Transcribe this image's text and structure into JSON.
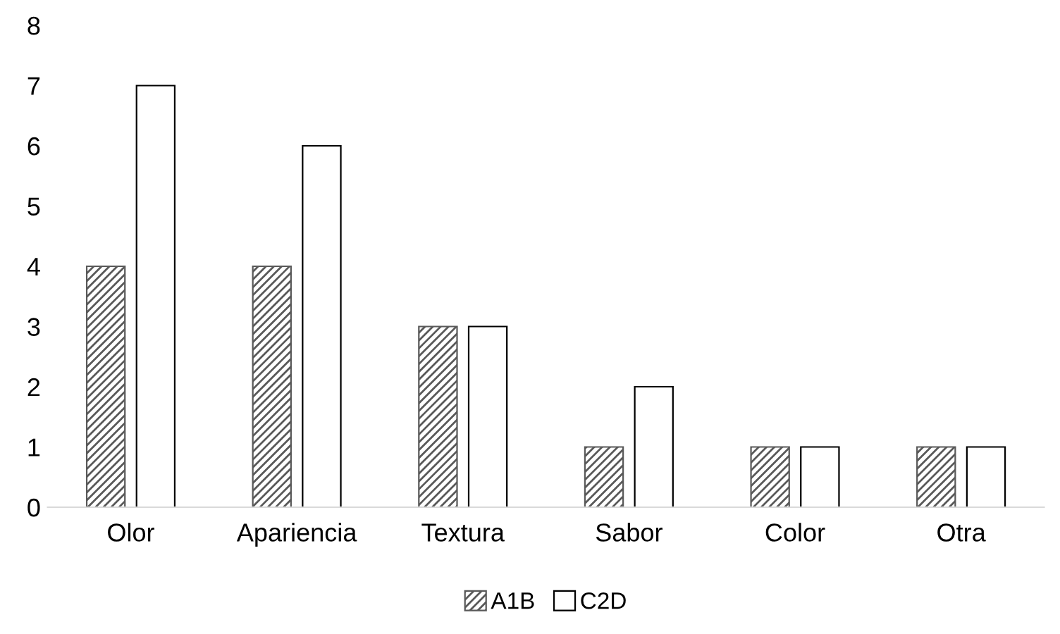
{
  "chart_data": {
    "type": "bar",
    "categories": [
      "Olor",
      "Apariencia",
      "Textura",
      "Sabor",
      "Color",
      "Otra"
    ],
    "series": [
      {
        "name": "A1B",
        "color": "#595959",
        "values": [
          4,
          4,
          3,
          1,
          1,
          1
        ]
      },
      {
        "name": "C2D",
        "color": "#ffffff",
        "values": [
          7,
          6,
          3,
          2,
          1,
          1
        ]
      }
    ],
    "ylim": [
      0,
      8
    ],
    "yticks": [
      0,
      1,
      2,
      3,
      4,
      5,
      6,
      7,
      8
    ],
    "grid": false,
    "legend": "bottom"
  }
}
